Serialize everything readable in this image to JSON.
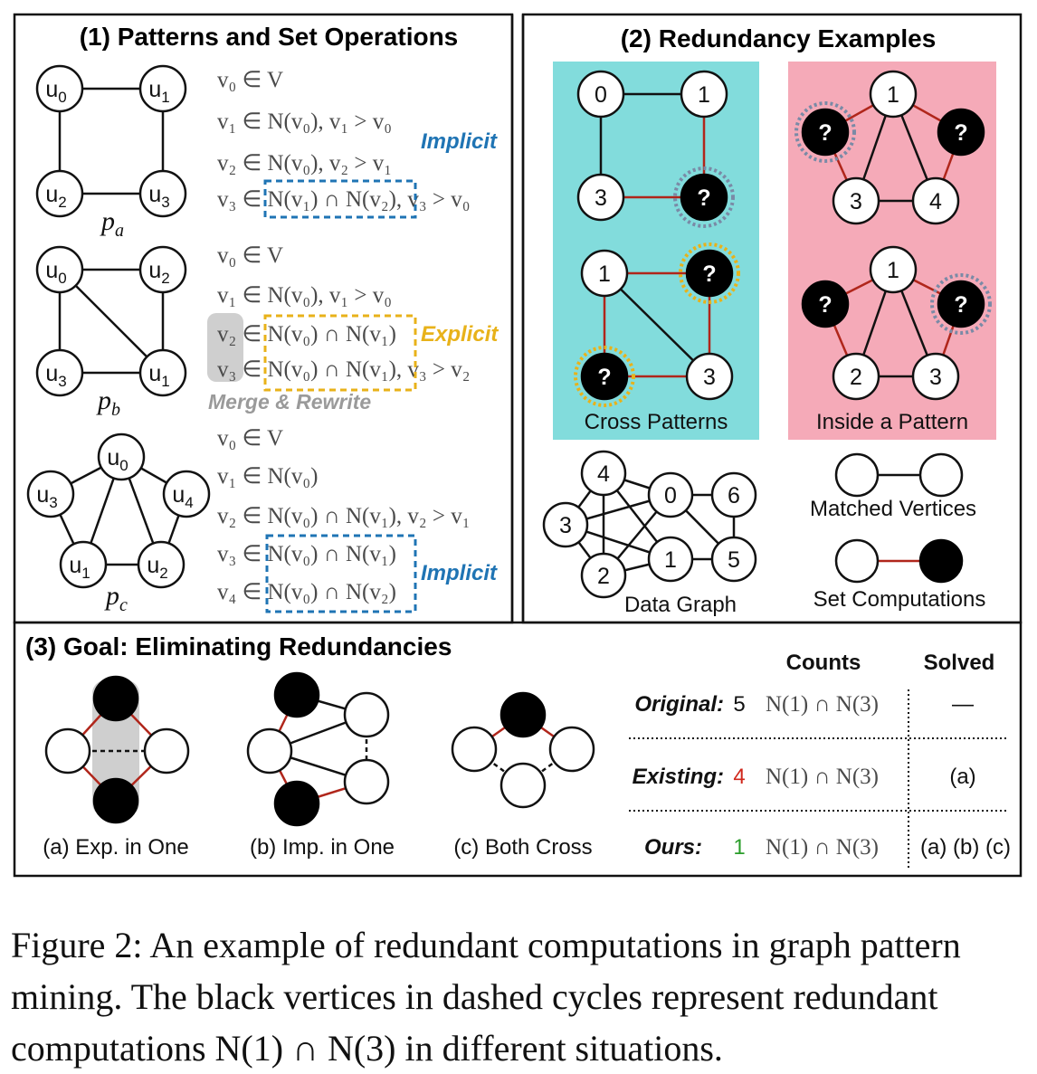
{
  "panel1": {
    "title": "(1) Patterns and Set Operations",
    "patterns": {
      "a": {
        "name": "p",
        "sub": "a",
        "nodes": [
          "u",
          "u",
          "u",
          "u"
        ],
        "node_subs": [
          "0",
          "1",
          "2",
          "3"
        ]
      },
      "b": {
        "name": "p",
        "sub": "b",
        "node_subs": [
          "0",
          "2",
          "3",
          "1"
        ]
      },
      "c": {
        "name": "p",
        "sub": "c",
        "node_subs": [
          "0",
          "3",
          "4",
          "1",
          "2"
        ]
      }
    },
    "ops_a": [
      "v₀ ∈ V",
      "v₁ ∈ N(v₀), v₁ > v₀",
      "v₂ ∈ N(v₀), v₂ > v₁",
      "v₃ ∈ N(v₁) ∩ N(v₂), v₃ > v₀"
    ],
    "ops_b": [
      "v₀ ∈ V",
      "v₁ ∈ N(v₀), v₁ > v₀",
      "v₂ ∈ N(v₀) ∩ N(v₁)",
      "v₃ ∈ N(v₀) ∩ N(v₁), v₃ > v₂"
    ],
    "ops_c": [
      "v₀ ∈ V",
      "v₁ ∈ N(v₀)",
      "v₂ ∈ N(v₀) ∩ N(v₁), v₂ > v₁",
      "v₃ ∈ N(v₀) ∩ N(v₁)",
      "v₄ ∈ N(v₀) ∩ N(v₂)"
    ],
    "implicit_label": "Implicit",
    "explicit_label": "Explicit",
    "merge_label": "Merge & Rewrite"
  },
  "panel2": {
    "title": "(2) Redundancy Examples",
    "cross_label": "Cross Patterns",
    "inside_label": "Inside a Pattern",
    "data_graph_label": "Data Graph",
    "matched_label": "Matched Vertices",
    "setcomp_label": "Set Computations",
    "unknown": "?",
    "cross_top_nodes": [
      "0",
      "1",
      "3"
    ],
    "cross_bottom_nodes": [
      "1",
      "3"
    ],
    "inside_top_nodes": [
      "1",
      "3",
      "4"
    ],
    "inside_bottom_nodes": [
      "1",
      "2",
      "3"
    ],
    "data_graph_nodes": [
      "4",
      "0",
      "6",
      "3",
      "1",
      "5",
      "2"
    ]
  },
  "panel3": {
    "title": "(3) Goal: Eliminating Redundancies",
    "sub_a": "(a) Exp. in One",
    "sub_b": "(b) Imp. in One",
    "sub_c": "(c) Both Cross",
    "header_counts": "Counts",
    "header_solved": "Solved",
    "rows": [
      {
        "label": "Original:",
        "count": "5",
        "count_color": "#111111",
        "expr": "N(1) ∩ N(3)",
        "solved": "—"
      },
      {
        "label": "Existing:",
        "count": "4",
        "count_color": "#d0281c",
        "expr": "N(1) ∩ N(3)",
        "solved": "(a)"
      },
      {
        "label": "Ours:",
        "count": "1",
        "count_color": "#2a9d2a",
        "expr": "N(1) ∩ N(3)",
        "solved": "(a) (b) (c)"
      }
    ]
  },
  "colors": {
    "cyan_panel": "#82dcdc",
    "pink_panel": "#f5aab8",
    "red_edge": "#b0261b",
    "blue_dash": "#1f74b4",
    "yellow_dash": "#e8b21a",
    "implicit_text": "#1f74b4",
    "explicit_text": "#e8b21a",
    "gray_box": "#cfcfcf"
  },
  "caption": "Figure 2: An example of redundant computations in graph pattern mining. The black vertices in dashed cycles represent redundant computations N(1) ∩ N(3) in different situations."
}
